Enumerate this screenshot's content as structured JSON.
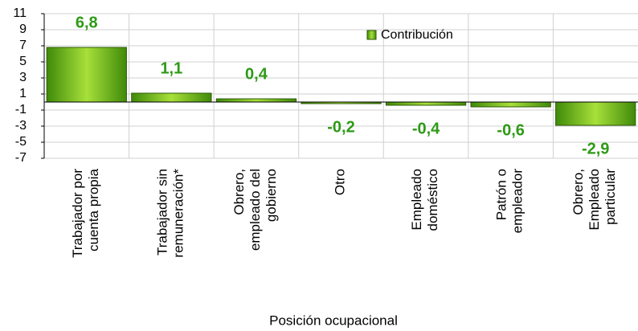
{
  "chart_data": {
    "type": "bar",
    "x_label": "Posición ocupacional",
    "categories": [
      "Trabajador por\ncuenta propia",
      "Trabajador sin\nremuneración*",
      "Obrero,\nempleado del\ngobierno",
      "Otro",
      "Empleado\ndoméstico",
      "Patrón o\nempleador",
      "Obrero,\nEmpleado\nparticular"
    ],
    "series": [
      {
        "name": "Contribución",
        "color": "#7cc01a",
        "values": [
          6.8,
          1.1,
          0.4,
          -0.2,
          -0.4,
          -0.6,
          -2.9
        ],
        "value_labels": [
          "6,8",
          "1,1",
          "0,4",
          "-0,2",
          "-0,4",
          "-0,6",
          "-2,9"
        ]
      }
    ],
    "ylim": [
      -7,
      11
    ],
    "yticks": [
      -7,
      -5,
      -3,
      -1,
      1,
      3,
      5,
      7,
      9,
      11
    ],
    "grid": true,
    "legend": "top-right"
  }
}
